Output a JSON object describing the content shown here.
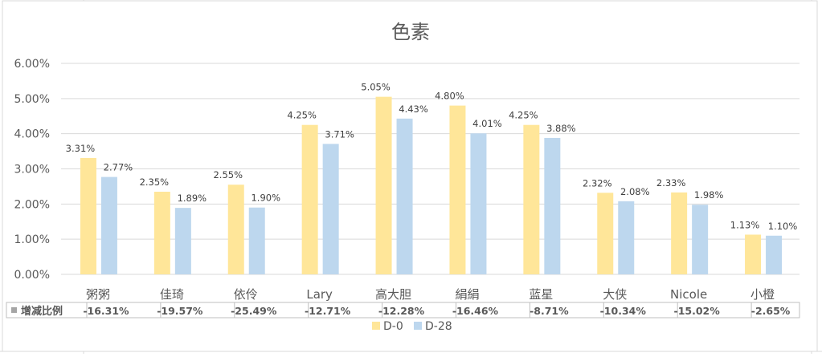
{
  "chart_data": {
    "type": "bar",
    "title": "色素",
    "categories": [
      "粥粥",
      "佳琦",
      "依伶",
      "Lary",
      "高大胆",
      "絹絹",
      "蓝星",
      "大侠",
      "Nicole",
      "小橙"
    ],
    "series": [
      {
        "name": "D-0",
        "color": "#FFE699",
        "values": [
          3.31,
          2.35,
          2.55,
          4.25,
          5.05,
          4.8,
          4.25,
          2.32,
          2.33,
          1.13
        ],
        "labels": [
          "3.31%",
          "2.35%",
          "2.55%",
          "4.25%",
          "5.05%",
          "4.80%",
          "4.25%",
          "2.32%",
          "2.33%",
          "1.13%"
        ]
      },
      {
        "name": "D-28",
        "color": "#BDD7EE",
        "values": [
          2.77,
          1.89,
          1.9,
          3.71,
          4.43,
          4.01,
          3.88,
          2.08,
          1.98,
          1.1
        ],
        "labels": [
          "2.77%",
          "1.89%",
          "1.90%",
          "3.71%",
          "4.43%",
          "4.01%",
          "3.88%",
          "2.08%",
          "1.98%",
          "1.10%"
        ]
      }
    ],
    "ylim": [
      0,
      6
    ],
    "yticks": [
      "0.00%",
      "1.00%",
      "2.00%",
      "3.00%",
      "4.00%",
      "5.00%",
      "6.00%"
    ],
    "grid": true,
    "legend": "bottom",
    "data_table": {
      "row_label": "增减比例",
      "values": [
        "-16.31%",
        "-19.57%",
        "-25.49%",
        "-12.71%",
        "-12.28%",
        "-16.46%",
        "-8.71%",
        "-10.34%",
        "-15.02%",
        "-2.65%"
      ]
    }
  }
}
